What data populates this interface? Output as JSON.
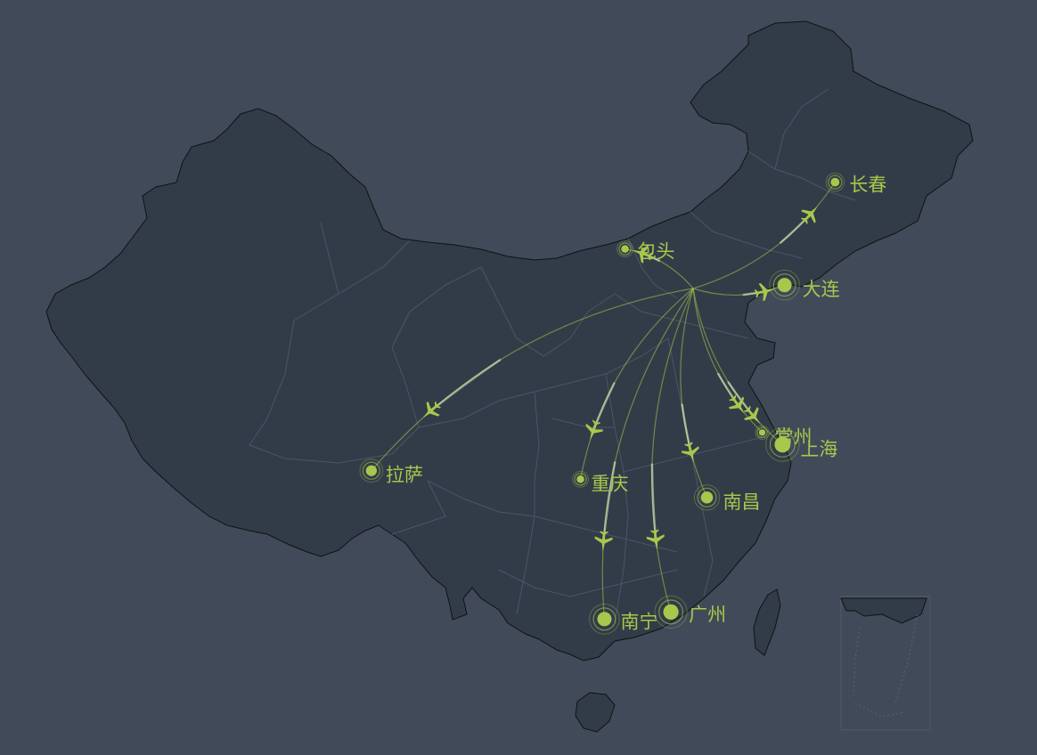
{
  "map": {
    "background": "#404a59",
    "land_color": "#323c48",
    "border_color": "#111111",
    "route_color": "#a6c84c",
    "hub": "北京",
    "hub_label_visible": false
  },
  "cities": [
    {
      "id": "changchun",
      "name": "长春",
      "lon": 125.35,
      "lat": 43.88,
      "value": 30
    },
    {
      "id": "baotou",
      "name": "包头",
      "lon": 109.84,
      "lat": 40.66,
      "value": 20
    },
    {
      "id": "dalian",
      "name": "大连",
      "lon": 121.62,
      "lat": 38.92,
      "value": 80
    },
    {
      "id": "changzhou",
      "name": "常州",
      "lon": 119.97,
      "lat": 31.81,
      "value": 10
    },
    {
      "id": "shanghai",
      "name": "上海",
      "lon": 121.47,
      "lat": 31.23,
      "value": 95
    },
    {
      "id": "lhasa",
      "name": "拉萨",
      "lon": 91.11,
      "lat": 29.97,
      "value": 50
    },
    {
      "id": "chongqing",
      "name": "重庆",
      "lon": 106.55,
      "lat": 29.56,
      "value": 20
    },
    {
      "id": "nanchang",
      "name": "南昌",
      "lon": 115.89,
      "lat": 28.68,
      "value": 60
    },
    {
      "id": "nanning",
      "name": "南宁",
      "lon": 108.32,
      "lat": 22.82,
      "value": 80
    },
    {
      "id": "guangzhou",
      "name": "广州",
      "lon": 113.23,
      "lat": 23.16,
      "value": 90
    }
  ]
}
